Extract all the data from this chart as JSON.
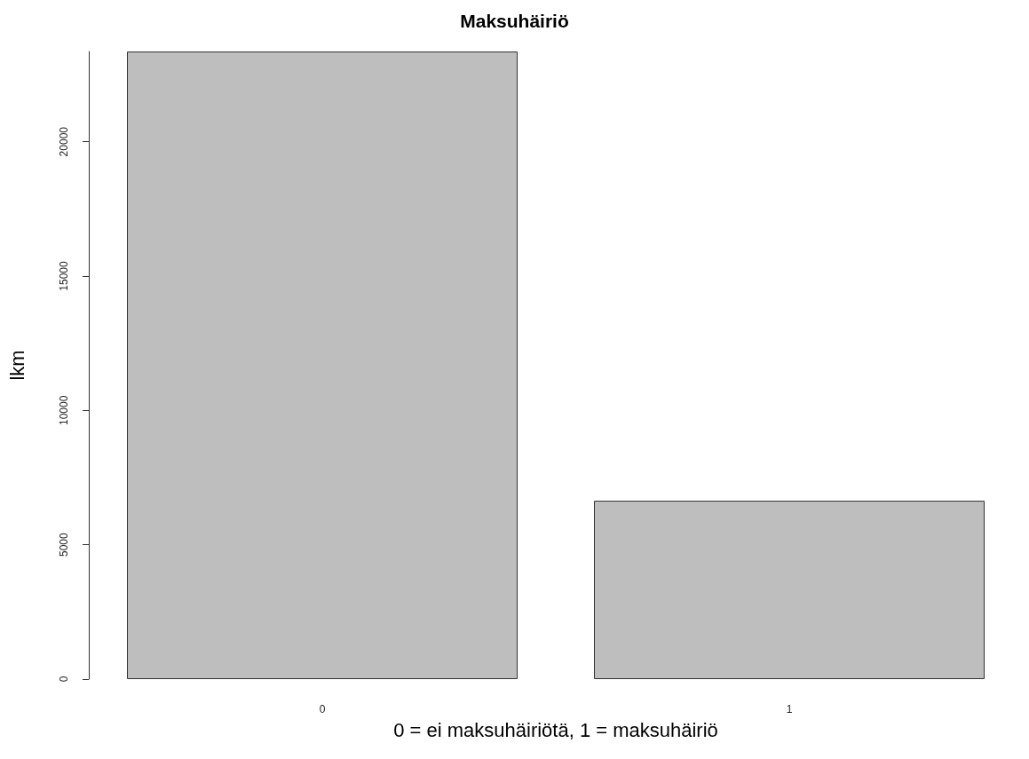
{
  "chart_data": {
    "type": "bar",
    "title": "Maksuhäiriö",
    "xlabel": "0 = ei maksuhäiriötä, 1 = maksuhäiriö",
    "ylabel": "lkm",
    "categories": [
      "0",
      "1"
    ],
    "values": [
      23360,
      6640
    ],
    "color": "#bebebe",
    "ylim": [
      0,
      23360
    ],
    "yticks": [
      0,
      5000,
      10000,
      15000,
      20000
    ],
    "grid": false
  }
}
